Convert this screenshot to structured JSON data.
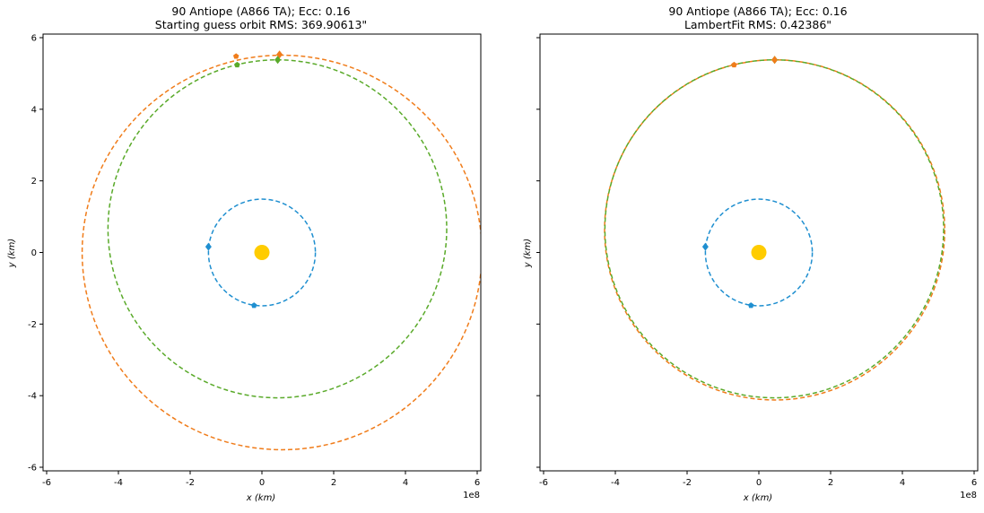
{
  "colors": {
    "earth": "#1f8fd0",
    "mars": "#f07c1a",
    "object": "#5aaa2a",
    "sun": "#ffcc00"
  },
  "chart_data": [
    {
      "type": "line",
      "title_line1": "90 Antiope (A866 TA); Ecc: 0.16",
      "title_line2": "Starting guess orbit RMS: 369.90613\"",
      "xlabel": "x (km)",
      "ylabel": "y (km)",
      "x_exponent": "1e8",
      "xlim": [
        -6.1,
        6.1
      ],
      "ylim": [
        -6.1,
        6.1
      ],
      "xticks": [
        "-6",
        "-4",
        "-2",
        "0",
        "2",
        "4",
        "6"
      ],
      "yticks": [
        "-6",
        "-4",
        "-2",
        "0",
        "2",
        "4",
        "6"
      ],
      "show_ytick_labels": true,
      "sun": {
        "x": 0,
        "y": 0
      },
      "orbits": [
        {
          "color_key": "earth",
          "cx": 0,
          "cy": 0,
          "rx": 1.49,
          "ry": 1.49
        },
        {
          "color_key": "object",
          "cx": 0.43,
          "cy": 0.66,
          "rx": 4.72,
          "ry": 4.72
        },
        {
          "color_key": "mars",
          "cx": 0.56,
          "cy": 0,
          "rx": 5.57,
          "ry": 5.51
        }
      ],
      "markers": [
        {
          "color_key": "earth",
          "shape": "diamond",
          "x": -1.49,
          "y": 0.16
        },
        {
          "color_key": "earth",
          "shape": "pentagon",
          "x": -0.22,
          "y": -1.48
        },
        {
          "color_key": "mars",
          "shape": "pentagon",
          "x": -0.72,
          "y": 5.48
        },
        {
          "color_key": "mars",
          "shape": "diamond",
          "x": 0.49,
          "y": 5.53
        },
        {
          "color_key": "object",
          "shape": "pentagon",
          "x": -0.69,
          "y": 5.24
        },
        {
          "color_key": "object",
          "shape": "diamond",
          "x": 0.44,
          "y": 5.38
        }
      ]
    },
    {
      "type": "line",
      "title_line1": "90 Antiope (A866 TA); Ecc: 0.16",
      "title_line2": "LambertFit RMS: 0.42386\"",
      "xlabel": "x (km)",
      "ylabel": "y (km)",
      "x_exponent": "1e8",
      "xlim": [
        -6.1,
        6.1
      ],
      "ylim": [
        -6.1,
        6.1
      ],
      "xticks": [
        "-6",
        "-4",
        "-2",
        "0",
        "2",
        "4",
        "6"
      ],
      "yticks": [
        "-6",
        "-4",
        "-2",
        "0",
        "2",
        "4",
        "6"
      ],
      "show_ytick_labels": false,
      "sun": {
        "x": 0,
        "y": 0
      },
      "orbits": [
        {
          "color_key": "earth",
          "cx": 0,
          "cy": 0,
          "rx": 1.49,
          "ry": 1.49
        },
        {
          "color_key": "mars",
          "cx": 0.44,
          "cy": 0.63,
          "rx": 4.74,
          "ry": 4.75
        },
        {
          "color_key": "object",
          "cx": 0.43,
          "cy": 0.66,
          "rx": 4.72,
          "ry": 4.72
        }
      ],
      "markers": [
        {
          "color_key": "earth",
          "shape": "diamond",
          "x": -1.49,
          "y": 0.16
        },
        {
          "color_key": "earth",
          "shape": "pentagon",
          "x": -0.22,
          "y": -1.48
        },
        {
          "color_key": "mars",
          "shape": "pentagon",
          "x": -0.69,
          "y": 5.24
        },
        {
          "color_key": "object",
          "shape": "diamond",
          "x": 0.44,
          "y": 5.38
        },
        {
          "color_key": "mars",
          "shape": "diamond",
          "x": 0.44,
          "y": 5.38
        }
      ]
    }
  ]
}
